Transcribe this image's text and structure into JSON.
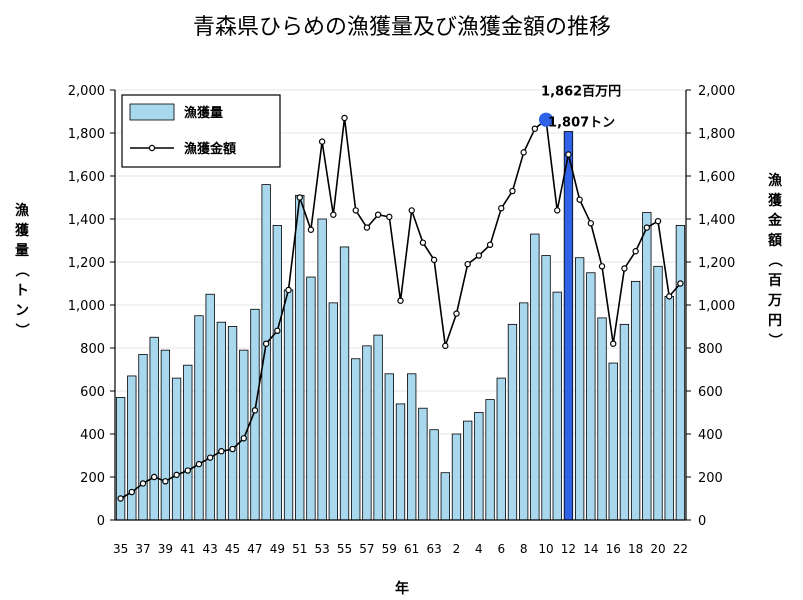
{
  "chart_data": {
    "type": "bar",
    "title": "青森県ひらめの漁獲量及び漁獲金額の推移",
    "xlabel": "年",
    "ylabel_left": "漁獲量（トン）",
    "ylabel_right": "漁獲金額（百万円）",
    "ylim_left": [
      0,
      2000
    ],
    "ylim_right": [
      0,
      2000
    ],
    "yticks": [
      "0",
      "200",
      "400",
      "600",
      "800",
      "1,000",
      "1,200",
      "1,400",
      "1,600",
      "1,800",
      "2,000"
    ],
    "x_tick_labels": [
      "35",
      "37",
      "39",
      "41",
      "43",
      "45",
      "47",
      "49",
      "51",
      "53",
      "55",
      "57",
      "59",
      "61",
      "63",
      "2",
      "4",
      "6",
      "8",
      "10",
      "12",
      "14",
      "16",
      "18",
      "20",
      "22"
    ],
    "categories": [
      "35",
      "36",
      "37",
      "38",
      "39",
      "40",
      "41",
      "42",
      "43",
      "44",
      "45",
      "46",
      "47",
      "48",
      "49",
      "50",
      "51",
      "52",
      "53",
      "54",
      "55",
      "56",
      "57",
      "58",
      "59",
      "60",
      "61",
      "62",
      "63",
      "1",
      "2",
      "3",
      "4",
      "5",
      "6",
      "7",
      "8",
      "9",
      "10",
      "11",
      "12",
      "13",
      "14",
      "15",
      "16",
      "17",
      "18",
      "19",
      "20",
      "21",
      "22"
    ],
    "legend": {
      "position": "top-left"
    },
    "series": [
      {
        "name": "漁獲量",
        "type": "bar",
        "axis": "left",
        "color": "#a9d8ee",
        "highlight_color": "#2f62e6",
        "highlight_category": "12",
        "values": [
          570,
          670,
          770,
          850,
          790,
          660,
          720,
          950,
          1050,
          920,
          900,
          790,
          980,
          1560,
          1370,
          1070,
          1510,
          1130,
          1400,
          1010,
          1270,
          750,
          810,
          860,
          680,
          540,
          680,
          520,
          420,
          220,
          400,
          460,
          500,
          560,
          660,
          910,
          1010,
          1330,
          1230,
          1060,
          1807,
          1220,
          1150,
          940,
          730,
          910,
          1110,
          1430,
          1180,
          1040,
          1370
        ]
      },
      {
        "name": "漁獲金額",
        "type": "line",
        "axis": "right",
        "color": "#000000",
        "highlight_color": "#2f62e6",
        "highlight_category": "10",
        "values": [
          100,
          130,
          170,
          200,
          180,
          210,
          230,
          260,
          290,
          320,
          330,
          380,
          510,
          820,
          880,
          1070,
          1500,
          1350,
          1760,
          1420,
          1870,
          1440,
          1360,
          1420,
          1410,
          1020,
          1440,
          1290,
          1210,
          810,
          960,
          1190,
          1230,
          1280,
          1450,
          1530,
          1710,
          1820,
          1862,
          1440,
          1700,
          1490,
          1380,
          1180,
          820,
          1170,
          1250,
          1360,
          1390,
          1040,
          1100
        ]
      }
    ],
    "annotations": [
      {
        "text": "1,862百万円",
        "series": "漁獲金額",
        "category": "10"
      },
      {
        "text": "1,807トン",
        "series": "漁獲量",
        "category": "12"
      }
    ]
  }
}
